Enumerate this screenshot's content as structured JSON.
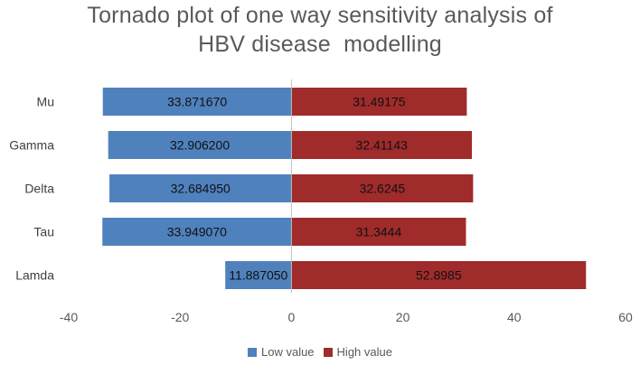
{
  "chart_data": {
    "type": "bar",
    "orientation": "horizontal",
    "title_lines": [
      "Tornado plot of one way sensitivity analysis of",
      "HBV disease  modelling"
    ],
    "categories": [
      "Mu",
      "Gamma",
      "Delta",
      "Tau",
      "Lamda"
    ],
    "series": [
      {
        "name": "Low value",
        "color": "#4F81BD",
        "values": [
          -33.87167,
          -32.9062,
          -32.68495,
          -33.94907,
          -11.88705
        ],
        "labels": [
          "33.871670",
          "32.906200",
          "32.684950",
          "33.949070",
          "11.887050"
        ]
      },
      {
        "name": "High value",
        "color": "#A02B2B",
        "values": [
          31.49175,
          32.41143,
          32.6245,
          31.3444,
          52.8985
        ],
        "labels": [
          "31.49175",
          "32.41143",
          "32.6245",
          "31.3444",
          "52.8985"
        ]
      }
    ],
    "xlim": [
      -40,
      60
    ],
    "xticks": [
      -40,
      -20,
      0,
      20,
      40,
      60
    ],
    "xtick_labels": [
      "-40",
      "-20",
      "0",
      "20",
      "40",
      "60"
    ],
    "legend_position": "bottom",
    "grid": false
  }
}
